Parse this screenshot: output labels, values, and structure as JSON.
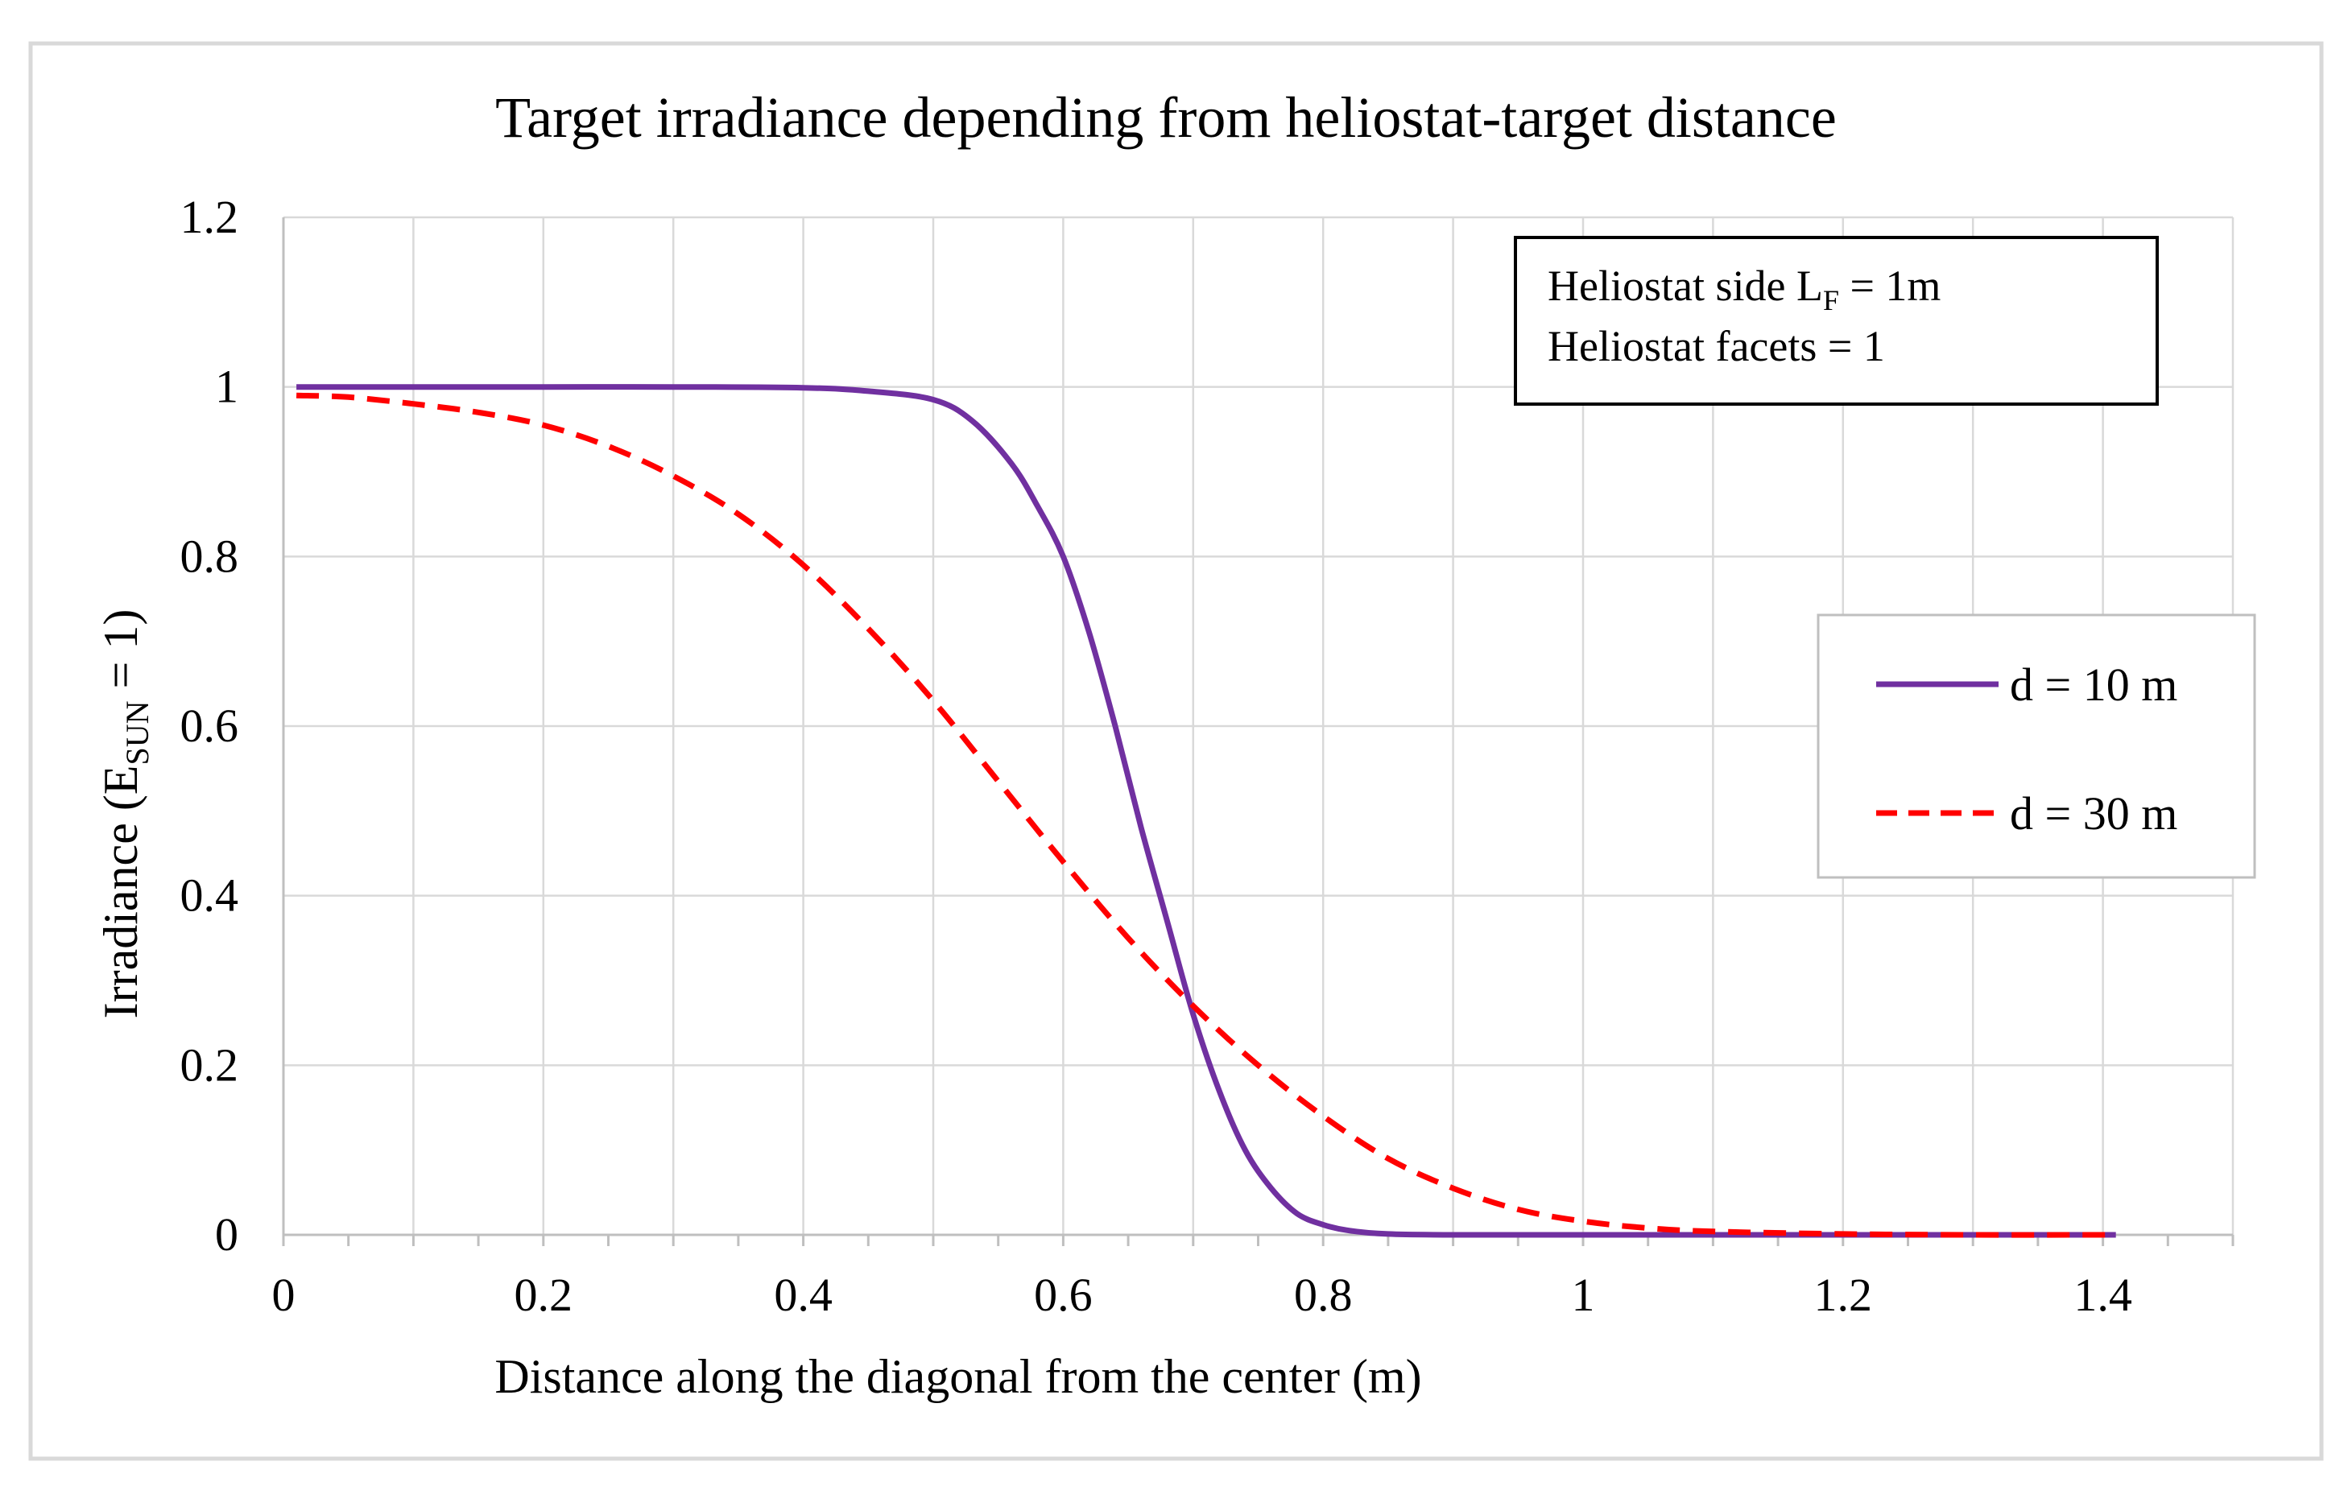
{
  "chart_data": {
    "type": "line",
    "title": "Target irradiance depending from heliostat-target distance",
    "xlabel": "Distance along the diagonal from the center (m)",
    "ylabel": {
      "prefix": "Irradiance (E",
      "subscript": "SUN",
      "suffix": " = 1)"
    },
    "xlim": [
      0,
      1.5
    ],
    "ylim": [
      0,
      1.2
    ],
    "x_ticks": [
      "0",
      "0.2",
      "0.4",
      "0.6",
      "0.8",
      "1",
      "1.2",
      "1.4"
    ],
    "y_ticks": [
      "0",
      "0.2",
      "0.4",
      "0.6",
      "0.8",
      "1",
      "1.2"
    ],
    "grid": true,
    "annotation": {
      "line1": {
        "prefix": "Heliostat side L",
        "subscript": "F",
        "suffix": " = 1m"
      },
      "line2": "Heliostat facets = 1"
    },
    "legend_position": "right",
    "series": [
      {
        "name": "d = 10 m",
        "color": "#7030a0",
        "style": "solid",
        "x": [
          0.01,
          0.1,
          0.2,
          0.3,
          0.4,
          0.45,
          0.5,
          0.53,
          0.56,
          0.58,
          0.6,
          0.62,
          0.64,
          0.66,
          0.68,
          0.7,
          0.72,
          0.74,
          0.76,
          0.78,
          0.8,
          0.82,
          0.85,
          0.9,
          1.0,
          1.2,
          1.41
        ],
        "y": [
          1.0,
          1.0,
          1.0,
          1.0,
          0.999,
          0.995,
          0.985,
          0.96,
          0.91,
          0.86,
          0.8,
          0.71,
          0.6,
          0.48,
          0.37,
          0.26,
          0.17,
          0.1,
          0.055,
          0.025,
          0.012,
          0.005,
          0.001,
          0.0,
          0.0,
          0.0,
          0.0
        ]
      },
      {
        "name": "d = 30 m",
        "color": "#ff0000",
        "style": "dashed",
        "x": [
          0.01,
          0.05,
          0.1,
          0.15,
          0.2,
          0.25,
          0.3,
          0.35,
          0.4,
          0.45,
          0.5,
          0.55,
          0.6,
          0.65,
          0.7,
          0.75,
          0.8,
          0.85,
          0.9,
          0.95,
          1.0,
          1.05,
          1.1,
          1.2,
          1.3,
          1.41
        ],
        "y": [
          0.99,
          0.988,
          0.98,
          0.97,
          0.955,
          0.93,
          0.895,
          0.85,
          0.79,
          0.715,
          0.63,
          0.535,
          0.44,
          0.35,
          0.27,
          0.2,
          0.14,
          0.09,
          0.055,
          0.03,
          0.016,
          0.008,
          0.004,
          0.001,
          0.0,
          0.0
        ]
      }
    ]
  }
}
